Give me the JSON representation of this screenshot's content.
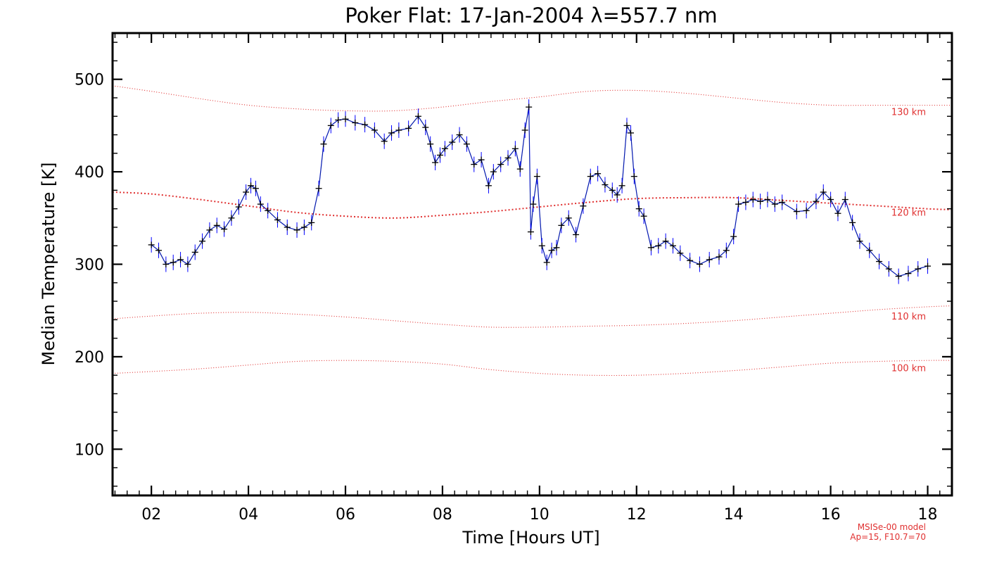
{
  "chart_data": {
    "type": "line",
    "title": "Poker Flat: 17-Jan-2004 λ=557.7 nm",
    "xlabel": "Time [Hours UT]",
    "ylabel": "Median Temperature [K]",
    "xlim": [
      1.2,
      18.5
    ],
    "ylim": [
      50,
      550
    ],
    "x_ticks": [
      2,
      4,
      6,
      8,
      10,
      12,
      14,
      16,
      18
    ],
    "x_tick_labels": [
      "02",
      "04",
      "06",
      "08",
      "10",
      "12",
      "14",
      "16",
      "18"
    ],
    "y_ticks": [
      100,
      200,
      300,
      400,
      500
    ],
    "y_tick_labels": [
      "100",
      "200",
      "300",
      "400",
      "500"
    ],
    "grid": false,
    "colors": {
      "data_line": "#0000ff",
      "markers": "#000000",
      "model": "#e03030"
    },
    "series": [
      {
        "x": [
          2.0,
          2.15,
          2.3,
          2.45,
          2.6,
          2.75,
          2.9,
          3.05,
          3.2,
          3.35,
          3.5,
          3.65,
          3.8,
          3.95,
          4.05,
          4.15,
          4.25,
          4.4,
          4.6,
          4.8,
          5.0,
          5.15,
          5.3,
          5.45,
          5.55,
          5.7,
          5.85,
          6.0,
          6.2,
          6.4,
          6.6,
          6.8,
          6.95,
          7.1,
          7.3,
          7.5,
          7.65,
          7.75,
          7.85,
          7.95,
          8.05,
          8.2,
          8.35,
          8.5,
          8.65,
          8.8,
          8.95,
          9.05,
          9.2,
          9.35,
          9.5,
          9.6,
          9.7,
          9.78,
          9.82,
          9.87,
          9.95,
          10.05,
          10.15,
          10.25,
          10.35,
          10.45,
          10.6,
          10.75,
          10.9,
          11.05,
          11.2,
          11.35,
          11.5,
          11.6,
          11.7,
          11.8,
          11.88,
          11.95,
          12.05,
          12.15,
          12.3,
          12.45,
          12.6,
          12.75,
          12.9,
          13.1,
          13.3,
          13.5,
          13.7,
          13.85,
          14.0,
          14.1,
          14.25,
          14.4,
          14.55,
          14.7,
          14.85,
          15.0,
          15.3,
          15.5,
          15.7,
          15.85,
          16.0,
          16.15,
          16.3,
          16.45,
          16.6,
          16.8,
          17.0,
          17.2,
          17.4,
          17.6,
          17.8,
          18.0
        ],
        "y": [
          321,
          315,
          300,
          302,
          305,
          300,
          313,
          325,
          337,
          342,
          338,
          350,
          362,
          378,
          385,
          382,
          365,
          358,
          348,
          340,
          337,
          340,
          345,
          382,
          430,
          450,
          456,
          457,
          453,
          451,
          445,
          433,
          442,
          445,
          447,
          460,
          448,
          430,
          410,
          418,
          425,
          432,
          440,
          430,
          408,
          413,
          385,
          400,
          408,
          415,
          425,
          403,
          445,
          470,
          335,
          365,
          395,
          320,
          302,
          315,
          318,
          342,
          350,
          332,
          363,
          395,
          398,
          386,
          380,
          375,
          385,
          450,
          442,
          395,
          360,
          352,
          318,
          320,
          325,
          320,
          312,
          304,
          300,
          305,
          308,
          315,
          330,
          365,
          367,
          370,
          368,
          370,
          365,
          367,
          357,
          358,
          368,
          378,
          370,
          355,
          370,
          345,
          325,
          315,
          303,
          295,
          287,
          290,
          295,
          298
        ]
      }
    ],
    "model_curves": [
      {
        "label": "130 km",
        "x": [
          1.2,
          2,
          3,
          4,
          5,
          6,
          7,
          8,
          9,
          10,
          11,
          12,
          13,
          14,
          15,
          16,
          17,
          18,
          18.5
        ],
        "y": [
          493,
          487,
          479,
          472,
          468,
          466,
          466,
          470,
          476,
          481,
          487,
          488,
          485,
          480,
          475,
          472,
          472,
          472,
          472
        ]
      },
      {
        "label": "120 km",
        "x": [
          1.2,
          2,
          3,
          4,
          5,
          6,
          7,
          8,
          9,
          10,
          11,
          12,
          13,
          14,
          15,
          16,
          17,
          18,
          18.5
        ],
        "y": [
          378,
          376,
          370,
          363,
          356,
          352,
          350,
          353,
          357,
          362,
          367,
          371,
          372,
          372,
          369,
          366,
          363,
          360,
          359
        ]
      },
      {
        "label": "110 km",
        "x": [
          1.2,
          2,
          3,
          4,
          5,
          6,
          7,
          8,
          9,
          10,
          11,
          12,
          13,
          14,
          15,
          16,
          17,
          18,
          18.5
        ],
        "y": [
          241,
          244,
          247,
          248,
          246,
          243,
          239,
          235,
          232,
          232,
          233,
          234,
          236,
          239,
          243,
          247,
          251,
          254,
          255
        ]
      },
      {
        "label": "100 km",
        "x": [
          1.2,
          2,
          3,
          4,
          5,
          6,
          7,
          8,
          9,
          10,
          11,
          12,
          13,
          14,
          15,
          16,
          17,
          18,
          18.5
        ],
        "y": [
          182,
          184,
          187,
          191,
          195,
          196,
          195,
          192,
          186,
          182,
          180,
          180,
          182,
          185,
          189,
          193,
          195,
          196,
          196
        ]
      }
    ],
    "model_note": [
      "MSISe-00 model",
      "Ap=15, F10.7=70"
    ]
  }
}
